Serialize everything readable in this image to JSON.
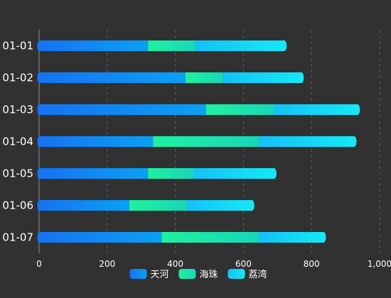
{
  "chart_data": {
    "type": "bar",
    "orientation": "horizontal",
    "stacked": true,
    "categories": [
      "01-01",
      "01-02",
      "01-03",
      "01-04",
      "01-05",
      "01-06",
      "01-07"
    ],
    "series": [
      {
        "name": "天河",
        "values": [
          320,
          430,
          490,
          335,
          320,
          265,
          360
        ],
        "color_start": "#1673f2",
        "color_end": "#0aa0f5"
      },
      {
        "name": "海珠",
        "values": [
          140,
          110,
          200,
          310,
          135,
          170,
          285
        ],
        "color_start": "#1ff1a0",
        "color_end": "#17d7b9"
      },
      {
        "name": "荔湾",
        "values": [
          260,
          230,
          245,
          280,
          235,
          190,
          190
        ],
        "color_start": "#13c2f7",
        "color_end": "#14e8f6"
      }
    ],
    "xlim": [
      0,
      1000
    ],
    "xticks": [
      "0",
      "200",
      "400",
      "600",
      "800",
      "1,000"
    ],
    "xtick_values": [
      0,
      200,
      400,
      600,
      800,
      1000
    ],
    "grid": "vertical-dashed",
    "legend_position": "bottom",
    "background": "#313131"
  }
}
